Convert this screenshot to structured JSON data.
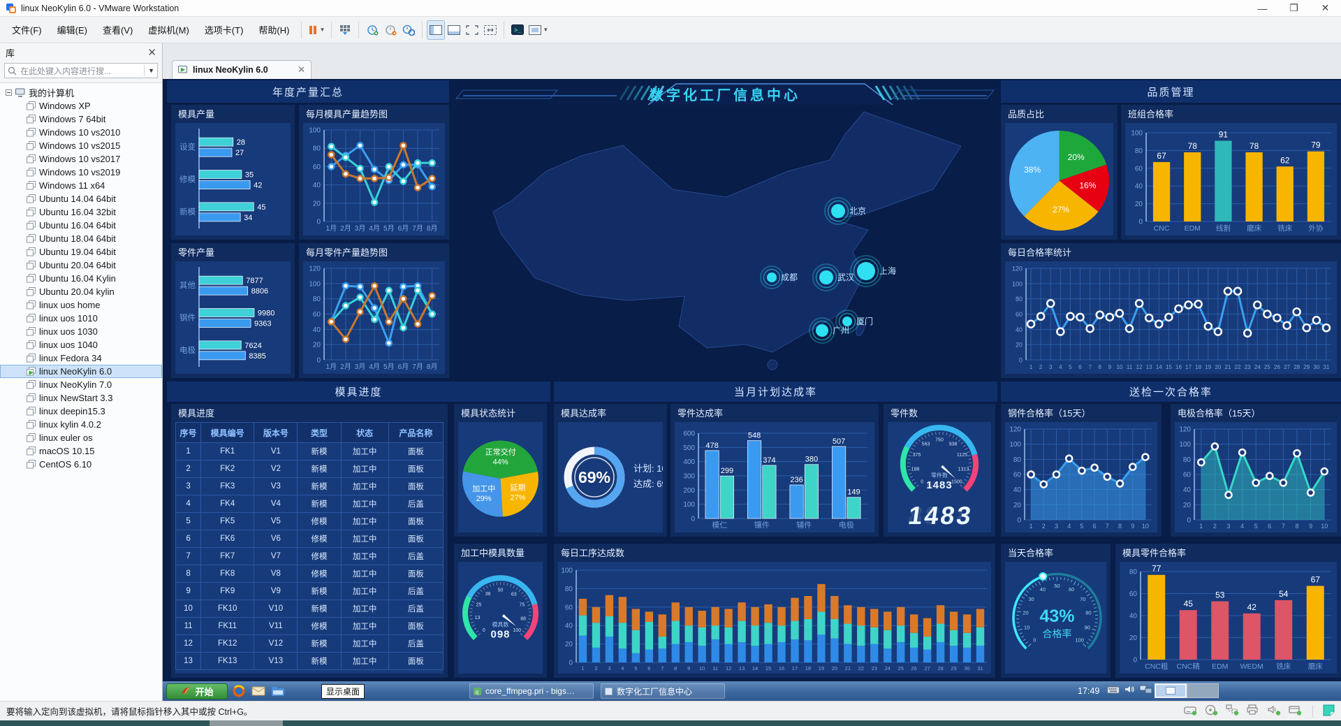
{
  "window": {
    "title": "linux NeoKylin 6.0 - VMware Workstation",
    "controls": [
      "minimize",
      "maximize",
      "close"
    ]
  },
  "menu_bar": {
    "items": [
      "文件(F)",
      "编辑(E)",
      "查看(V)",
      "虚拟机(M)",
      "选项卡(T)",
      "帮助(H)"
    ]
  },
  "toolbar": {
    "icons": [
      "pause-icon",
      "send-ctrl-alt-del-icon",
      "take-snapshot-icon",
      "revert-snapshot-icon",
      "manage-snapshots-icon",
      "show-library-icon",
      "show-thumbnail-bar-icon",
      "unity-icon",
      "autosize-icon",
      "console-icon",
      "fullscreen-icon"
    ]
  },
  "sidebar": {
    "header": "库",
    "search_placeholder": "在此处键入内容进行搜...",
    "root": "我的计算机",
    "selected": "linux NeoKylin 6.0",
    "vms": [
      "Windows XP",
      "Windows 7 64bit",
      "Windows 10 vs2010",
      "Windows 10 vs2015",
      "Windows 10 vs2017",
      "Windows 10 vs2019",
      "Windows 11 x64",
      "Ubuntu 14.04 64bit",
      "Ubuntu 16.04 32bit",
      "Ubuntu 16.04 64bit",
      "Ubuntu 18.04 64bit",
      "Ubuntu 19.04 64bit",
      "Ubuntu 20.04 64bit",
      "Ubuntu 16.04 Kylin",
      "Ubuntu 20.04 kylin",
      "linux uos home",
      "linux uos 1010",
      "linux uos 1030",
      "linux uos 1040",
      "linux Fedora 34",
      "linux NeoKylin 6.0",
      "linux NeoKylin 7.0",
      "linux NewStart 3.3",
      "linux deepin15.3",
      "linux kylin 4.0.2",
      "linux euler os",
      "macOS 10.15",
      "CentOS 6.10"
    ]
  },
  "tab": {
    "label": "linux NeoKylin 6.0"
  },
  "dashboard": {
    "headers": {
      "annual": "年度产量汇总",
      "center_title": "数字化工厂信息中心",
      "quality": "品质管理",
      "mold_progress": "模具进度",
      "monthly_plan": "当月计划达成率",
      "inspection": "送检一次合格率"
    }
  },
  "taskbar": {
    "start_label": "开始",
    "tooltip": "显示桌面",
    "clock": "17:49",
    "quick_icons": [
      "firefox-icon",
      "mail-icon",
      "folder-icon"
    ],
    "tray_icons": [
      "keyboard-icon",
      "speaker-icon",
      "network-icon"
    ],
    "tasks": [
      {
        "label": "core_ffmpeg.pri - bigs…"
      },
      {
        "label": "数字化工厂信息中心"
      }
    ]
  },
  "status_bar": {
    "message": "要将输入定向到该虚拟机，请将鼠标指针移入其中或按 Ctrl+G。",
    "device_icons": [
      "hard-disk-icon",
      "cd-rom-icon",
      "network-adapter-icon",
      "printer-icon",
      "sound-icon",
      "usb-icon"
    ],
    "note_icon": "notes-icon"
  },
  "colors": {
    "dashboard_bg": "#081d47",
    "panel": "#102b5e",
    "panel_body": "#173a7a",
    "banner": "#0f2f6b",
    "cyan": "#36d6f5",
    "blue": "#3a9af0",
    "teal": "#3fd0d8",
    "orange": "#d97a2b",
    "yellow": "#f8b500",
    "green": "#22a63c",
    "red": "#e60012",
    "pink": "#f4437a"
  },
  "chart_data": [
    {
      "id": "mold_output",
      "type": "hbar-pair",
      "title": "模具产量",
      "xmax": 50,
      "categories": [
        "设变",
        "修模",
        "新模"
      ],
      "series": [
        {
          "color": "#3fd0d8",
          "values": [
            28,
            35,
            45
          ]
        },
        {
          "color": "#3a9af0",
          "values": [
            27,
            42,
            34
          ]
        }
      ]
    },
    {
      "id": "mold_trend",
      "type": "line",
      "title": "每月模具产量趋势图",
      "x": [
        "1月",
        "2月",
        "3月",
        "4月",
        "5月",
        "6月",
        "7月",
        "8月"
      ],
      "ylim": [
        0,
        100
      ],
      "ystep": 20,
      "series": [
        {
          "color": "#3aa0f0",
          "values": [
            60,
            72,
            83,
            57,
            45,
            62,
            62,
            38
          ]
        },
        {
          "color": "#38d0d8",
          "values": [
            82,
            70,
            58,
            21,
            60,
            44,
            64,
            64
          ]
        },
        {
          "color": "#c9772e",
          "values": [
            73,
            52,
            47,
            47,
            48,
            83,
            37,
            47
          ]
        }
      ]
    },
    {
      "id": "parts_output",
      "type": "hbar-pair",
      "title": "零件产量",
      "xmax": 11000,
      "categories": [
        "其他",
        "钢件",
        "电极"
      ],
      "series": [
        {
          "color": "#3fd0d8",
          "values": [
            7877,
            9980,
            7624
          ]
        },
        {
          "color": "#3a9af0",
          "values": [
            8806,
            9363,
            8385
          ]
        }
      ]
    },
    {
      "id": "parts_trend",
      "type": "line",
      "title": "每月零件产量趋势图",
      "x": [
        "1月",
        "2月",
        "3月",
        "4月",
        "5月",
        "6月",
        "7月",
        "8月"
      ],
      "ylim": [
        0,
        120
      ],
      "ystep": 20,
      "series": [
        {
          "color": "#3aa0f0",
          "values": [
            50,
            97,
            96,
            68,
            22,
            96,
            97,
            60
          ]
        },
        {
          "color": "#38d0d8",
          "values": [
            50,
            71,
            82,
            53,
            91,
            42,
            91,
            60
          ]
        },
        {
          "color": "#c9772e",
          "values": [
            50,
            27,
            63,
            97,
            50,
            80,
            47,
            84
          ]
        }
      ]
    },
    {
      "id": "quality_pie",
      "type": "pie",
      "title": "品质占比",
      "start": -90,
      "slices": [
        {
          "pct": 20,
          "color": "#1ea83c"
        },
        {
          "pct": 16,
          "color": "#e60012"
        },
        {
          "pct": 27,
          "color": "#f8b500"
        },
        {
          "pct": 38,
          "color": "#4db3f2"
        }
      ]
    },
    {
      "id": "team_rate",
      "type": "vbar",
      "title": "班组合格率",
      "ylim": [
        0,
        100
      ],
      "ystep": 20,
      "categories": [
        "CNC",
        "EDM",
        "线割",
        "磨床",
        "铣床",
        "外协"
      ],
      "values": [
        67,
        78,
        91,
        78,
        62,
        79
      ],
      "colors": [
        "#f8b500",
        "#f8b500",
        "#2fb8ba",
        "#f8b500",
        "#f8b500",
        "#f8b500"
      ]
    },
    {
      "id": "daily_rate",
      "type": "line",
      "title": "每日合格率统计",
      "marker": "ring",
      "fs": 8,
      "x": [
        "1",
        "2",
        "3",
        "4",
        "5",
        "6",
        "7",
        "8",
        "9",
        "10",
        "11",
        "12",
        "13",
        "14",
        "15",
        "16",
        "17",
        "18",
        "19",
        "20",
        "21",
        "22",
        "23",
        "24",
        "25",
        "26",
        "27",
        "28",
        "29",
        "30",
        "31"
      ],
      "ylim": [
        0,
        120
      ],
      "ystep": 20,
      "series": [
        {
          "color": "#3aa0f0",
          "values": [
            47,
            57,
            74,
            37,
            57,
            56,
            41,
            59,
            56,
            61,
            41,
            74,
            55,
            47,
            56,
            67,
            72,
            73,
            44,
            37,
            90,
            90,
            35,
            72,
            60,
            55,
            45,
            63,
            42,
            52,
            42
          ]
        }
      ]
    },
    {
      "id": "mold_table",
      "type": "table",
      "title": "模具进度",
      "headers": [
        "序号",
        "模具编号",
        "版本号",
        "类型",
        "状态",
        "产品名称"
      ],
      "rows": [
        [
          "1",
          "FK1",
          "V1",
          "新模",
          "加工中",
          "面板"
        ],
        [
          "2",
          "FK2",
          "V2",
          "新模",
          "加工中",
          "面板"
        ],
        [
          "3",
          "FK3",
          "V3",
          "新模",
          "加工中",
          "面板"
        ],
        [
          "4",
          "FK4",
          "V4",
          "新模",
          "加工中",
          "后盖"
        ],
        [
          "5",
          "FK5",
          "V5",
          "修模",
          "加工中",
          "面板"
        ],
        [
          "6",
          "FK6",
          "V6",
          "修模",
          "加工中",
          "面板"
        ],
        [
          "7",
          "FK7",
          "V7",
          "修模",
          "加工中",
          "后盖"
        ],
        [
          "8",
          "FK8",
          "V8",
          "修模",
          "加工中",
          "面板"
        ],
        [
          "9",
          "FK9",
          "V9",
          "新模",
          "加工中",
          "后盖"
        ],
        [
          "10",
          "FK10",
          "V10",
          "新模",
          "加工中",
          "后盖"
        ],
        [
          "11",
          "FK11",
          "V11",
          "修模",
          "加工中",
          "面板"
        ],
        [
          "12",
          "FK12",
          "V12",
          "新模",
          "加工中",
          "后盖"
        ],
        [
          "13",
          "FK13",
          "V13",
          "新模",
          "加工中",
          "面板"
        ]
      ]
    },
    {
      "id": "mold_status",
      "type": "pie",
      "title": "模具状态统计",
      "start": -169,
      "slices": [
        {
          "label": "正常交付",
          "pct": 44,
          "color": "#22a63c"
        },
        {
          "label": "延期",
          "pct": 27,
          "color": "#f8b500"
        },
        {
          "label": "加工中",
          "pct": 29,
          "color": "#4596e8"
        }
      ]
    },
    {
      "id": "mold_gauge",
      "type": "gauge",
      "title": "加工中模具数量",
      "min": 0,
      "max": 100,
      "value": 98,
      "ticks": [
        0,
        13,
        25,
        38,
        50,
        63,
        75,
        88,
        100
      ],
      "label": "模具数",
      "digital": "098",
      "segments": [
        {
          "to": 0.27,
          "color": "#2ee6a8"
        },
        {
          "to": 0.78,
          "color": "#38b6f0"
        },
        {
          "to": 1,
          "color": "#f4437a"
        }
      ]
    },
    {
      "id": "mold_completion",
      "type": "donut",
      "title": "模具达成率",
      "pct": 69,
      "color": "#56a5f0",
      "rest": "#f2f6fc",
      "center": "69%",
      "lines": [
        "计划: 100",
        "达成: 69"
      ]
    },
    {
      "id": "parts_completion",
      "type": "pair-vbar",
      "title": "零件达成率",
      "ylim": [
        0,
        600
      ],
      "ystep": 100,
      "categories": [
        "模仁",
        "镶件",
        "辅件",
        "电极"
      ],
      "series": [
        {
          "color": "#3a9af0",
          "values": [
            478,
            548,
            236,
            507
          ]
        },
        {
          "color": "#3fd4c8",
          "values": [
            299,
            374,
            380,
            149
          ]
        }
      ]
    },
    {
      "id": "parts_count",
      "type": "gauge",
      "title": "零件数",
      "min": 0,
      "max": 1500,
      "value": 1483,
      "ticks": [
        0,
        188,
        375,
        563,
        750,
        938,
        1125,
        1313,
        1500
      ],
      "label": "零件数",
      "digital": "1483",
      "big": "1483",
      "segments": [
        {
          "to": 0.27,
          "color": "#2ee6a8"
        },
        {
          "to": 0.78,
          "color": "#38b6f0"
        },
        {
          "to": 1,
          "color": "#f4437a"
        }
      ]
    },
    {
      "id": "daily_process",
      "type": "stack-bar",
      "title": "每日工序达成数",
      "ylim": [
        0,
        100
      ],
      "ystep": 20,
      "colors": [
        "#2e8ae6",
        "#3fd4c8",
        "#d97a2b"
      ],
      "x": [
        "1",
        "2",
        "3",
        "4",
        "5",
        "6",
        "7",
        "8",
        "9",
        "10",
        "11",
        "12",
        "13",
        "14",
        "15",
        "16",
        "17",
        "18",
        "19",
        "20",
        "21",
        "22",
        "23",
        "24",
        "25",
        "26",
        "27",
        "28",
        "29",
        "30",
        "31"
      ],
      "values": [
        [
          29,
          22,
          18
        ],
        [
          16,
          27,
          17
        ],
        [
          28,
          22,
          23
        ],
        [
          15,
          28,
          28
        ],
        [
          10,
          25,
          23
        ],
        [
          14,
          30,
          11
        ],
        [
          15,
          13,
          24
        ],
        [
          20,
          25,
          20
        ],
        [
          22,
          18,
          20
        ],
        [
          18,
          20,
          18
        ],
        [
          25,
          15,
          20
        ],
        [
          20,
          18,
          20
        ],
        [
          22,
          23,
          20
        ],
        [
          18,
          22,
          20
        ],
        [
          20,
          23,
          20
        ],
        [
          22,
          18,
          20
        ],
        [
          25,
          20,
          25
        ],
        [
          24,
          23,
          25
        ],
        [
          30,
          25,
          30
        ],
        [
          26,
          21,
          25
        ],
        [
          20,
          22,
          20
        ],
        [
          18,
          22,
          20
        ],
        [
          20,
          18,
          20
        ],
        [
          15,
          20,
          20
        ],
        [
          22,
          18,
          20
        ],
        [
          16,
          16,
          20
        ],
        [
          14,
          14,
          20
        ],
        [
          22,
          20,
          20
        ],
        [
          18,
          17,
          20
        ],
        [
          16,
          16,
          20
        ],
        [
          18,
          20,
          20
        ]
      ]
    },
    {
      "id": "steel_rate",
      "type": "area",
      "title": "钢件合格率（15天）",
      "ylim": [
        0,
        120
      ],
      "ystep": 20,
      "x": [
        "1",
        "2",
        "3",
        "4",
        "5",
        "6",
        "7",
        "8",
        "9",
        "10"
      ],
      "color": "#3aa0f0",
      "fill": "rgba(58,160,240,0.5)",
      "values": [
        60,
        47,
        60,
        81,
        65,
        69,
        57,
        48,
        70,
        83
      ]
    },
    {
      "id": "elec_rate",
      "type": "area",
      "title": "电极合格率（15天）",
      "ylim": [
        0,
        120
      ],
      "ystep": 20,
      "x": [
        "1",
        "2",
        "3",
        "4",
        "5",
        "6",
        "7",
        "8",
        "9",
        "10"
      ],
      "color": "#35d8c8",
      "fill": "rgba(53,216,200,0.42)",
      "values": [
        76,
        97,
        33,
        89,
        49,
        58,
        49,
        88,
        36,
        64
      ]
    },
    {
      "id": "today_gauge",
      "type": "ring-gauge",
      "title": "当天合格率",
      "min": 0,
      "max": 100,
      "value": 43,
      "ticks": [
        0,
        10,
        20,
        30,
        40,
        50,
        60,
        70,
        80,
        90,
        100
      ],
      "center": [
        "43%",
        "合格率"
      ],
      "color": "#40e8ff"
    },
    {
      "id": "mold_parts_rate",
      "type": "vbar",
      "title": "模具零件合格率",
      "ylim": [
        0,
        80
      ],
      "ystep": 20,
      "categories": [
        "CNC粗",
        "CNC精",
        "EDM",
        "WEDM",
        "铣床",
        "磨床"
      ],
      "values": [
        77,
        45,
        53,
        42,
        54,
        67
      ],
      "colors": [
        "#f8b500",
        "#dd5566",
        "#dd5566",
        "#dd5566",
        "#dd5566",
        "#f8b500"
      ]
    },
    {
      "id": "map",
      "type": "map",
      "title": "数字化工厂信息中心",
      "cities": [
        {
          "name": "北京",
          "x": 552,
          "y": 152,
          "r": 10
        },
        {
          "name": "成都",
          "x": 457,
          "y": 247,
          "r": 7
        },
        {
          "name": "武汉",
          "x": 535,
          "y": 247,
          "r": 10
        },
        {
          "name": "上海",
          "x": 592,
          "y": 238,
          "r": 13
        },
        {
          "name": "厦门",
          "x": 565,
          "y": 310,
          "r": 7
        },
        {
          "name": "广州",
          "x": 529,
          "y": 323,
          "r": 9
        }
      ]
    }
  ]
}
